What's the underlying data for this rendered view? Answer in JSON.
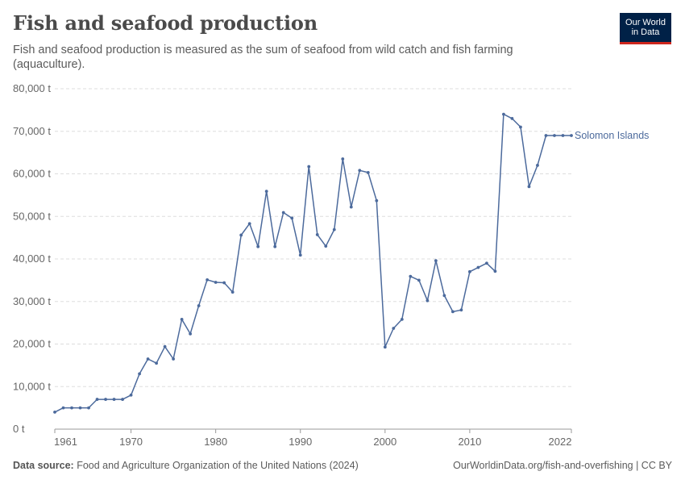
{
  "header": {
    "title": "Fish and seafood production",
    "subtitle": "Fish and seafood production is measured as the sum of seafood from wild catch and fish farming (aquaculture).",
    "logo_line1": "Our World",
    "logo_line2": "in Data"
  },
  "footer": {
    "source_label": "Data source:",
    "source_text": "Food and Agriculture Organization of the United Nations (2024)",
    "link_text": "OurWorldinData.org/fish-and-overfishing | CC BY"
  },
  "chart_data": {
    "type": "line",
    "title": "Fish and seafood production",
    "xlabel": "",
    "ylabel": "",
    "xlim": [
      1961,
      2022
    ],
    "ylim": [
      0,
      80000
    ],
    "x_ticks": [
      "1961",
      "1970",
      "1980",
      "1990",
      "2000",
      "2010",
      "2022"
    ],
    "y_ticks": [
      "0 t",
      "10,000 t",
      "20,000 t",
      "30,000 t",
      "40,000 t",
      "50,000 t",
      "60,000 t",
      "70,000 t",
      "80,000 t"
    ],
    "y_tick_values": [
      0,
      10000,
      20000,
      30000,
      40000,
      50000,
      60000,
      70000,
      80000
    ],
    "grid": "horizontal dashed",
    "legend": "inline label at line end",
    "colors": {
      "series": "#4c6a9c",
      "grid": "#dddddd",
      "axis": "#999999"
    },
    "series": [
      {
        "name": "Solomon Islands",
        "x": [
          1961,
          1962,
          1963,
          1964,
          1965,
          1966,
          1967,
          1968,
          1969,
          1970,
          1971,
          1972,
          1973,
          1974,
          1975,
          1976,
          1977,
          1978,
          1979,
          1980,
          1981,
          1982,
          1983,
          1984,
          1985,
          1986,
          1987,
          1988,
          1989,
          1990,
          1991,
          1992,
          1993,
          1994,
          1995,
          1996,
          1997,
          1998,
          1999,
          2000,
          2001,
          2002,
          2003,
          2004,
          2005,
          2006,
          2007,
          2008,
          2009,
          2010,
          2011,
          2012,
          2013,
          2014,
          2015,
          2016,
          2017,
          2018,
          2019,
          2020,
          2021,
          2022
        ],
        "values": [
          4000,
          5000,
          5000,
          5000,
          5000,
          7000,
          7000,
          7000,
          7000,
          8000,
          13000,
          16500,
          15500,
          19400,
          16500,
          25800,
          22400,
          29000,
          35100,
          34500,
          34400,
          32200,
          45600,
          48300,
          42900,
          55900,
          42900,
          50900,
          49600,
          40900,
          61700,
          45700,
          43000,
          46900,
          63500,
          52200,
          60800,
          60300,
          53700,
          19300,
          23700,
          25800,
          35900,
          35000,
          30200,
          39600,
          31400,
          27600,
          28000,
          37000,
          38000,
          39000,
          37100,
          74000,
          73000,
          71000,
          57000,
          62000,
          69000,
          69000,
          69000,
          69000
        ]
      }
    ]
  }
}
